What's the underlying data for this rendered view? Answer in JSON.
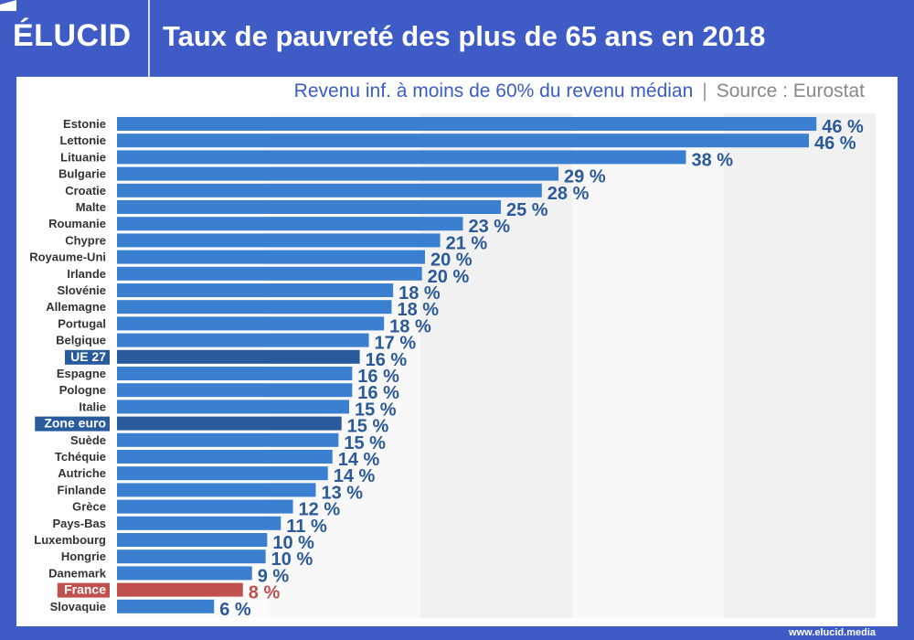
{
  "header": {
    "logo": "ÉLUCID",
    "title": "Taux de pauvreté des plus de 65 ans en 2018"
  },
  "subtitle": {
    "main": "Revenu inf. à moins de 60% du revenu médian",
    "separator": "|",
    "source": "Source : Eurostat"
  },
  "footer": {
    "url": "www.elucid.media"
  },
  "colors": {
    "bar": "#3a7fd0",
    "aggregate": "#285a9c",
    "france": "#c0504d",
    "label": "#2b5a96",
    "header": "#3f5bc6"
  },
  "chart_data": {
    "type": "bar",
    "orientation": "horizontal",
    "title": "Taux de pauvreté des plus de 65 ans en 2018",
    "xlim": [
      0,
      50
    ],
    "grid": "alternating bands every 10 %",
    "categories": [
      "Estonie",
      "Lettonie",
      "Lituanie",
      "Bulgarie",
      "Croatie",
      "Malte",
      "Roumanie",
      "Chypre",
      "Royaume-Uni",
      "Irlande",
      "Slovénie",
      "Allemagne",
      "Portugal",
      "Belgique",
      "UE 27",
      "Espagne",
      "Pologne",
      "Italie",
      "Zone euro",
      "Suède",
      "Tchéquie",
      "Autriche",
      "Finlande",
      "Grèce",
      "Pays-Bas",
      "Luxembourg",
      "Hongrie",
      "Danemark",
      "France",
      "Slovaquie"
    ],
    "values": [
      46.1,
      45.6,
      37.5,
      29.1,
      28.0,
      25.3,
      22.8,
      21.3,
      20.3,
      20.1,
      18.2,
      18.1,
      17.6,
      16.6,
      16.0,
      15.5,
      15.5,
      15.3,
      14.8,
      14.6,
      14.2,
      13.9,
      13.1,
      11.6,
      10.8,
      9.9,
      9.8,
      8.9,
      8.3,
      6.4
    ],
    "data_labels": [
      "46 %",
      "46 %",
      "38 %",
      "29 %",
      "28 %",
      "25 %",
      "23 %",
      "21 %",
      "20 %",
      "20 %",
      "18 %",
      "18 %",
      "18 %",
      "17 %",
      "16 %",
      "16 %",
      "16 %",
      "15 %",
      "15 %",
      "15 %",
      "14 %",
      "14 %",
      "13 %",
      "12 %",
      "11 %",
      "10 %",
      "10 %",
      "9 %",
      "8 %",
      "6 %"
    ],
    "highlighted": {
      "UE 27": "aggregate",
      "Zone euro": "aggregate",
      "France": "france"
    }
  }
}
